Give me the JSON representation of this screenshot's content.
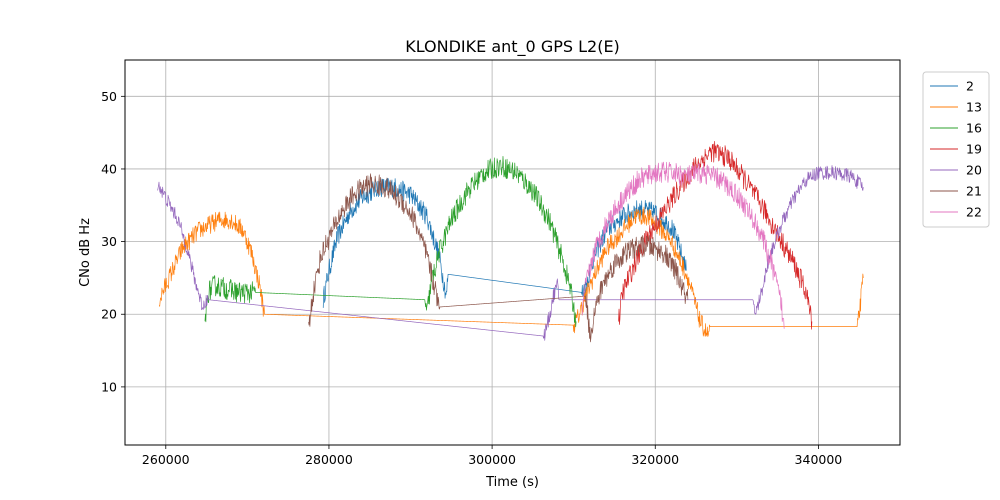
{
  "chart_data": {
    "type": "line",
    "title": "KLONDIKE ant_0 GPS L2(E)",
    "xlabel": "Time (s)",
    "ylabel": "CNo dB Hz",
    "xlim": [
      255000,
      350000
    ],
    "ylim": [
      2,
      55
    ],
    "xticks": [
      260000,
      280000,
      300000,
      320000,
      340000
    ],
    "yticks": [
      10,
      20,
      30,
      40,
      50
    ],
    "grid": true,
    "legend_position": "outside-right-top",
    "series": [
      {
        "name": "2",
        "color": "#1f77b4",
        "noise": 1.4,
        "points": [
          [
            279300,
            22
          ],
          [
            280000,
            26
          ],
          [
            281000,
            30.5
          ],
          [
            282500,
            34
          ],
          [
            284000,
            36
          ],
          [
            286000,
            37.5
          ],
          [
            288000,
            37.5
          ],
          [
            290000,
            36.5
          ],
          [
            292000,
            33.5
          ],
          [
            293500,
            28
          ],
          [
            294400,
            22.5
          ],
          [
            294600,
            25.5
          ],
          [
            311000,
            23
          ],
          [
            311500,
            24
          ],
          [
            312500,
            28
          ],
          [
            314000,
            31.5
          ],
          [
            316000,
            33.5
          ],
          [
            318000,
            34.5
          ],
          [
            320000,
            34
          ],
          [
            322000,
            32
          ],
          [
            323000,
            29
          ],
          [
            323800,
            26
          ]
        ]
      },
      {
        "name": "13",
        "color": "#ff7f0e",
        "noise": 1.3,
        "points": [
          [
            259200,
            22
          ],
          [
            260000,
            24
          ],
          [
            261000,
            26.5
          ],
          [
            262000,
            29
          ],
          [
            264000,
            31.5
          ],
          [
            266500,
            33
          ],
          [
            268000,
            33
          ],
          [
            269500,
            31.5
          ],
          [
            270500,
            28.5
          ],
          [
            271500,
            24
          ],
          [
            272000,
            20.5
          ],
          [
            272100,
            20
          ],
          [
            310000,
            18.5
          ],
          [
            310500,
            19.5
          ],
          [
            312000,
            24
          ],
          [
            314000,
            29
          ],
          [
            316000,
            31.5
          ],
          [
            317500,
            33.5
          ],
          [
            319000,
            33.5
          ],
          [
            320500,
            32
          ],
          [
            322000,
            30
          ],
          [
            324000,
            25
          ],
          [
            325500,
            19
          ],
          [
            326500,
            17
          ],
          [
            326700,
            18.3
          ],
          [
            344800,
            18.3
          ],
          [
            345000,
            20
          ],
          [
            345500,
            25
          ]
        ]
      },
      {
        "name": "16",
        "color": "#2ca02c",
        "noise": 1.5,
        "points": [
          [
            264800,
            19
          ],
          [
            265200,
            23
          ],
          [
            266000,
            24
          ],
          [
            267500,
            23.5
          ],
          [
            269000,
            23
          ],
          [
            270500,
            23
          ],
          [
            271000,
            23
          ],
          [
            291800,
            22
          ],
          [
            292000,
            20
          ],
          [
            292500,
            24
          ],
          [
            293500,
            28.5
          ],
          [
            295000,
            33
          ],
          [
            297000,
            37
          ],
          [
            299000,
            39.5
          ],
          [
            301000,
            40.5
          ],
          [
            303000,
            39.5
          ],
          [
            305000,
            37
          ],
          [
            307000,
            33
          ],
          [
            308500,
            28
          ],
          [
            309500,
            24
          ],
          [
            310300,
            19
          ]
        ]
      },
      {
        "name": "19",
        "color": "#d62728",
        "noise": 1.5,
        "points": [
          [
            315500,
            19
          ],
          [
            316000,
            23
          ],
          [
            317500,
            27
          ],
          [
            319000,
            30.5
          ],
          [
            321000,
            34
          ],
          [
            323000,
            37.5
          ],
          [
            325000,
            40.5
          ],
          [
            327000,
            42.5
          ],
          [
            329000,
            41.5
          ],
          [
            331000,
            38.5
          ],
          [
            333000,
            35
          ],
          [
            335000,
            31
          ],
          [
            337000,
            27
          ],
          [
            338500,
            23
          ],
          [
            339200,
            19
          ]
        ]
      },
      {
        "name": "20",
        "color": "#9467bd",
        "noise": 1.0,
        "points": [
          [
            259000,
            38
          ],
          [
            260000,
            36
          ],
          [
            261500,
            33
          ],
          [
            262500,
            29.5
          ],
          [
            263500,
            25
          ],
          [
            264500,
            21
          ],
          [
            265000,
            22
          ],
          [
            265200,
            22
          ],
          [
            306300,
            17
          ],
          [
            306500,
            17.5
          ],
          [
            307000,
            19.5
          ],
          [
            307500,
            22.5
          ],
          [
            308000,
            24
          ],
          [
            308200,
            22
          ],
          [
            332000,
            22
          ],
          [
            332300,
            20
          ],
          [
            333000,
            23
          ],
          [
            334000,
            28
          ],
          [
            335500,
            32.5
          ],
          [
            337000,
            36
          ],
          [
            338500,
            38.5
          ],
          [
            340000,
            39.5
          ],
          [
            342000,
            39.5
          ],
          [
            344000,
            39
          ],
          [
            345500,
            37.5
          ]
        ]
      },
      {
        "name": "21",
        "color": "#8c564b",
        "noise": 1.5,
        "points": [
          [
            277500,
            18
          ],
          [
            278000,
            22.5
          ],
          [
            279000,
            28
          ],
          [
            280000,
            30.5
          ],
          [
            281500,
            34
          ],
          [
            283000,
            36.5
          ],
          [
            285000,
            38
          ],
          [
            287000,
            37.5
          ],
          [
            289000,
            35.5
          ],
          [
            290500,
            33
          ],
          [
            292000,
            28
          ],
          [
            293000,
            23.5
          ],
          [
            293400,
            21.5
          ],
          [
            293600,
            21
          ],
          [
            311500,
            22.5
          ],
          [
            312000,
            17
          ],
          [
            312500,
            20
          ],
          [
            313500,
            24
          ],
          [
            315000,
            27
          ],
          [
            317000,
            29
          ],
          [
            319000,
            29.5
          ],
          [
            321000,
            28.5
          ],
          [
            322500,
            26
          ],
          [
            323500,
            23
          ],
          [
            324000,
            22
          ]
        ]
      },
      {
        "name": "22",
        "color": "#e377c2",
        "noise": 1.5,
        "points": [
          [
            311000,
            20
          ],
          [
            311500,
            24
          ],
          [
            312500,
            28.5
          ],
          [
            314000,
            32.5
          ],
          [
            316000,
            36
          ],
          [
            318000,
            38.5
          ],
          [
            320000,
            39.5
          ],
          [
            322000,
            39.5
          ],
          [
            324000,
            39
          ],
          [
            326000,
            39.5
          ],
          [
            328000,
            38.5
          ],
          [
            330000,
            36.5
          ],
          [
            331500,
            34
          ],
          [
            333000,
            31
          ],
          [
            334500,
            26
          ],
          [
            335500,
            21
          ],
          [
            335800,
            18
          ]
        ]
      }
    ]
  }
}
